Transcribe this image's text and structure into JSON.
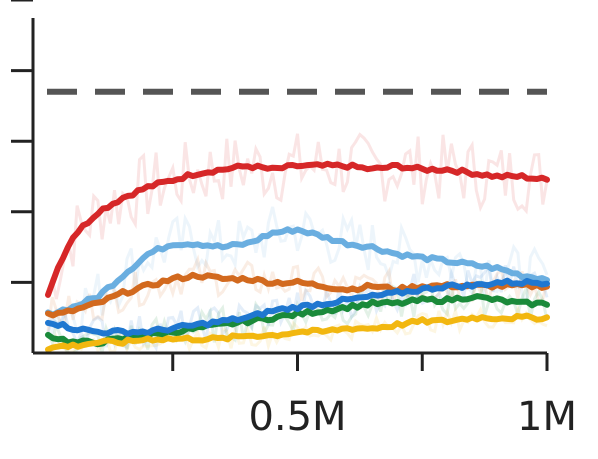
{
  "chart_data": {
    "type": "line",
    "title": "",
    "xlabel": "",
    "ylabel": "",
    "xlim": [
      0,
      1000000
    ],
    "ylim": [
      0,
      1
    ],
    "x_ticks": [
      0,
      250000,
      500000,
      750000,
      1000000
    ],
    "x_tick_labels": [
      "",
      "",
      "0.5M",
      "",
      "1M"
    ],
    "y_ticks": [
      0.2,
      0.4,
      0.6,
      0.8,
      1.0
    ],
    "y_tick_labels": [
      "",
      "",
      "",
      "",
      ""
    ],
    "grid": false,
    "reference_line": {
      "y": 0.74,
      "style": "dashed",
      "color": "#555555"
    },
    "x": [
      0,
      25000,
      50000,
      100000,
      150000,
      200000,
      250000,
      300000,
      350000,
      400000,
      450000,
      500000,
      550000,
      600000,
      650000,
      700000,
      750000,
      800000,
      850000,
      900000,
      950000,
      1000000
    ],
    "series": [
      {
        "color": "#d62728",
        "values": [
          0.17,
          0.26,
          0.33,
          0.4,
          0.44,
          0.47,
          0.49,
          0.51,
          0.52,
          0.53,
          0.52,
          0.53,
          0.53,
          0.53,
          0.52,
          0.53,
          0.52,
          0.52,
          0.51,
          0.5,
          0.5,
          0.49
        ]
      },
      {
        "color": "#6aaee0",
        "values": [
          0.11,
          0.12,
          0.13,
          0.16,
          0.22,
          0.28,
          0.31,
          0.31,
          0.3,
          0.31,
          0.34,
          0.35,
          0.33,
          0.31,
          0.3,
          0.28,
          0.27,
          0.26,
          0.25,
          0.24,
          0.22,
          0.21
        ]
      },
      {
        "color": "#d2691e",
        "values": [
          0.11,
          0.11,
          0.12,
          0.14,
          0.17,
          0.19,
          0.21,
          0.22,
          0.21,
          0.21,
          0.2,
          0.2,
          0.19,
          0.18,
          0.19,
          0.18,
          0.19,
          0.19,
          0.19,
          0.19,
          0.19,
          0.19
        ]
      },
      {
        "color": "#1a8a3a",
        "values": [
          0.05,
          0.04,
          0.03,
          0.03,
          0.04,
          0.05,
          0.06,
          0.07,
          0.08,
          0.09,
          0.1,
          0.11,
          0.12,
          0.13,
          0.14,
          0.14,
          0.15,
          0.15,
          0.16,
          0.15,
          0.14,
          0.14
        ]
      },
      {
        "color": "#1f77d0",
        "values": [
          0.09,
          0.08,
          0.07,
          0.06,
          0.06,
          0.06,
          0.07,
          0.08,
          0.09,
          0.1,
          0.12,
          0.13,
          0.14,
          0.15,
          0.16,
          0.17,
          0.18,
          0.19,
          0.19,
          0.2,
          0.2,
          0.2
        ]
      },
      {
        "color": "#f2b70f",
        "values": [
          0.01,
          0.02,
          0.02,
          0.03,
          0.03,
          0.04,
          0.04,
          0.04,
          0.04,
          0.05,
          0.05,
          0.06,
          0.06,
          0.07,
          0.07,
          0.08,
          0.09,
          0.09,
          0.1,
          0.1,
          0.1,
          0.1
        ]
      }
    ]
  }
}
